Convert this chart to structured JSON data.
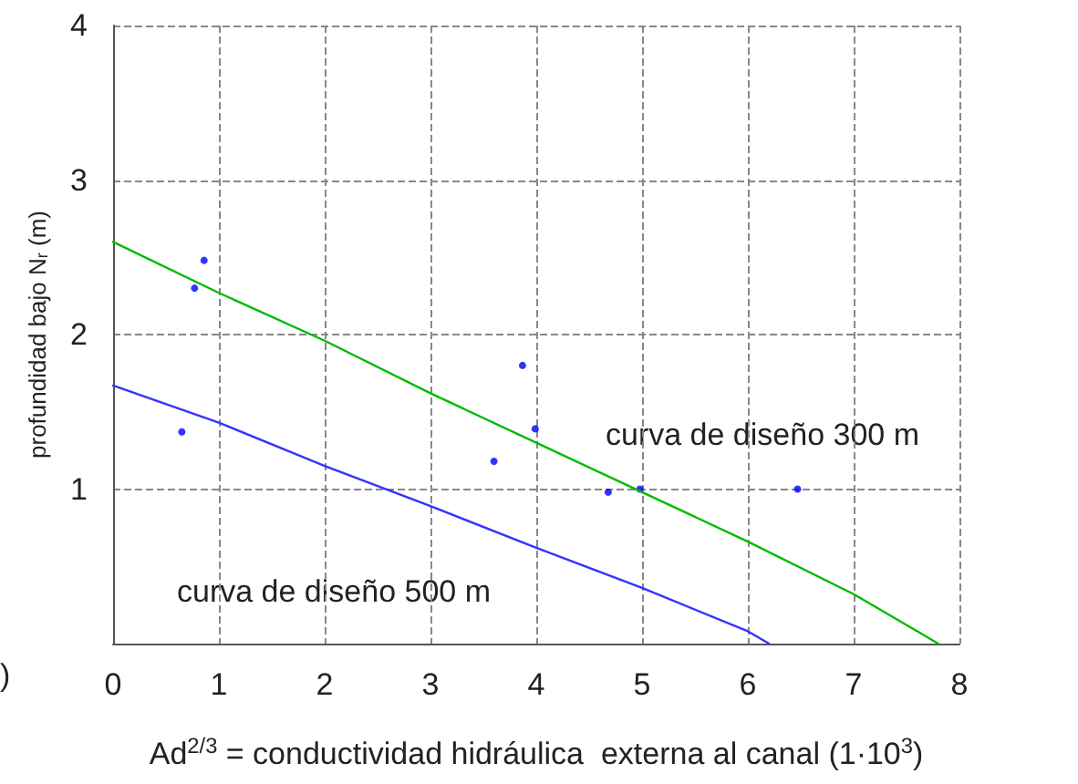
{
  "chart_data": {
    "type": "scatter",
    "xlabel": "Ad$^{2/3}$ = conductividad hidráulica  externa al canal (1·10$^{3}$)",
    "ylabel": "profundidad bajo N$_{r}$ (m)",
    "xlim": [
      0,
      8
    ],
    "xticks": [
      0,
      1,
      2,
      3,
      4,
      5,
      6,
      7,
      8
    ],
    "ylim": [
      0,
      4
    ],
    "yticks": [
      1,
      2,
      3,
      4
    ],
    "grid": true,
    "marker": "circle",
    "series": [
      {
        "color": "#0000ff",
        "x": [
          0.65,
          0.77,
          0.86,
          3.6,
          3.87,
          3.99,
          4.68,
          4.98,
          6.47
        ],
        "values": [
          1.37,
          2.3,
          2.48,
          1.18,
          1.8,
          1.39,
          0.98,
          1.0,
          1.0
        ]
      },
      {
        "type": "line",
        "name": "curva de diseño 300 m",
        "color": "#00bb00",
        "marker": "none",
        "x": [
          0,
          1,
          2,
          3,
          4,
          5,
          6,
          7,
          7.8
        ],
        "values": [
          2.6,
          2.27,
          1.96,
          1.62,
          1.3,
          0.98,
          0.66,
          0.32,
          0
        ]
      },
      {
        "type": "line",
        "name": "curva de diseño 500 m",
        "color": "#3333ff",
        "marker": "none",
        "x": [
          0,
          1,
          2,
          3,
          4,
          5,
          6,
          6.2
        ],
        "values": [
          1.67,
          1.43,
          1.15,
          0.89,
          0.62,
          0.36,
          0.08,
          0
        ]
      }
    ],
    "annotations": [
      ")"
    ]
  }
}
